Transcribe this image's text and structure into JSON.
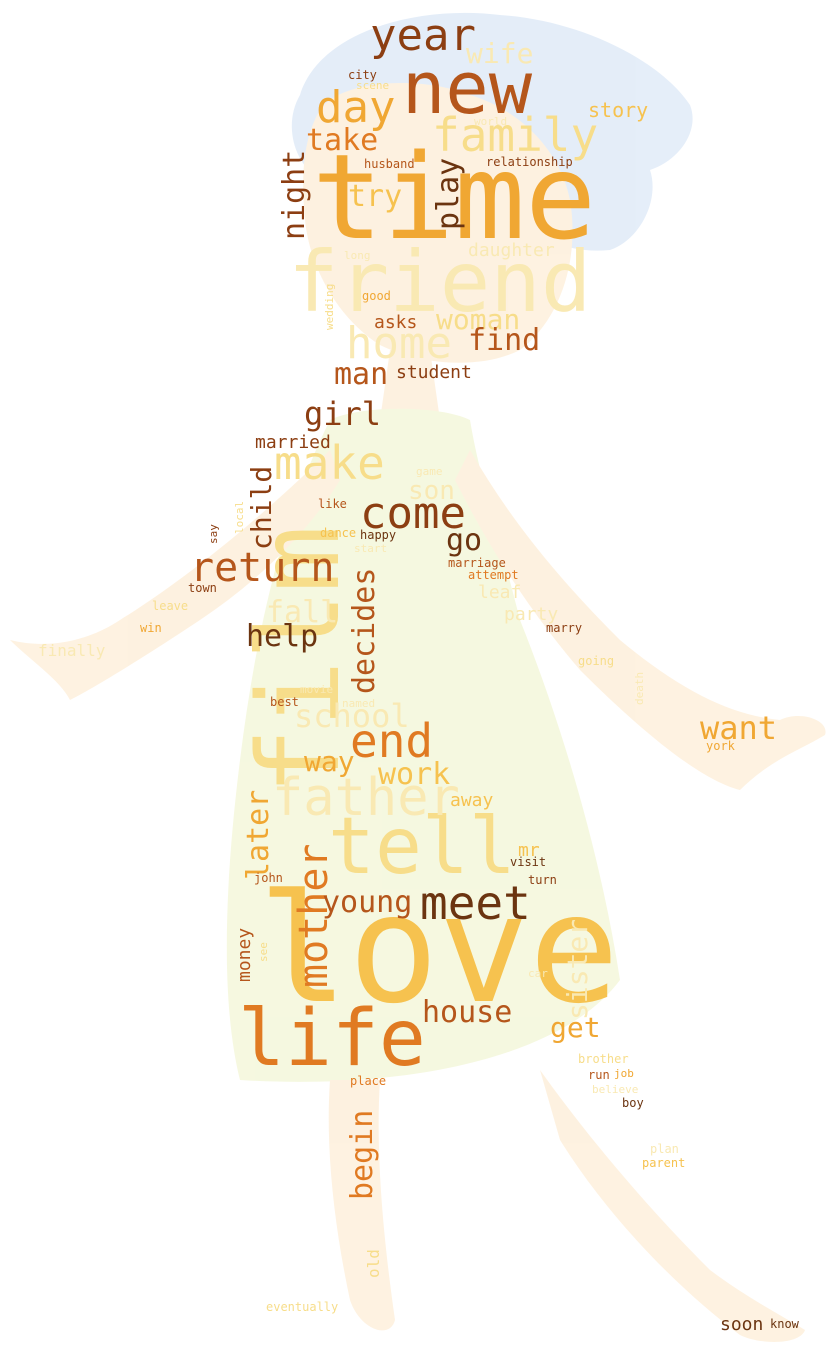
{
  "wordcloud": {
    "palette": {
      "dark_brown": "#6b3410",
      "brown": "#8c3e12",
      "rust": "#b5561b",
      "orange": "#e07a22",
      "amber": "#f0a733",
      "gold": "#f6c24f",
      "pale_gold": "#f7dd8a",
      "cream": "#f9e9b3"
    },
    "words": [
      {
        "text": "time",
        "color": "#f0a733"
      },
      {
        "text": "love",
        "color": "#f6c24f"
      },
      {
        "text": "film",
        "color": "#f7dd8a"
      },
      {
        "text": "friend",
        "color": "#f9e9b3"
      },
      {
        "text": "new",
        "color": "#b5561b"
      },
      {
        "text": "tell",
        "color": "#f7dd8a"
      },
      {
        "text": "life",
        "color": "#e07a22"
      },
      {
        "text": "year",
        "color": "#8c3e12"
      },
      {
        "text": "family",
        "color": "#f7dd8a"
      },
      {
        "text": "day",
        "color": "#f0a733"
      },
      {
        "text": "home",
        "color": "#f9e9b3"
      },
      {
        "text": "make",
        "color": "#f7dd8a"
      },
      {
        "text": "come",
        "color": "#8c3e12"
      },
      {
        "text": "return",
        "color": "#b5561b"
      },
      {
        "text": "meet",
        "color": "#6b3410"
      },
      {
        "text": "father",
        "color": "#f9e9b3"
      },
      {
        "text": "end",
        "color": "#e07a22"
      },
      {
        "text": "mother",
        "color": "#e07a22"
      },
      {
        "text": "wife",
        "color": "#f9e9b3"
      },
      {
        "text": "take",
        "color": "#e07a22"
      },
      {
        "text": "try",
        "color": "#f6c24f"
      },
      {
        "text": "night",
        "color": "#8c3e12"
      },
      {
        "text": "play",
        "color": "#6b3410"
      },
      {
        "text": "woman",
        "color": "#f7dd8a"
      },
      {
        "text": "find",
        "color": "#b5561b"
      },
      {
        "text": "man",
        "color": "#b5561b"
      },
      {
        "text": "girl",
        "color": "#8c3e12"
      },
      {
        "text": "son",
        "color": "#f9e9b3"
      },
      {
        "text": "child",
        "color": "#8c3e12"
      },
      {
        "text": "go",
        "color": "#6b3410"
      },
      {
        "text": "decides",
        "color": "#b5561b"
      },
      {
        "text": "fall",
        "color": "#f9e9b3"
      },
      {
        "text": "help",
        "color": "#6b3410"
      },
      {
        "text": "school",
        "color": "#f9e9b3"
      },
      {
        "text": "want",
        "color": "#f0a733"
      },
      {
        "text": "way",
        "color": "#f0a733"
      },
      {
        "text": "work",
        "color": "#f6c24f"
      },
      {
        "text": "young",
        "color": "#b5561b"
      },
      {
        "text": "later",
        "color": "#f0a733"
      },
      {
        "text": "house",
        "color": "#b5561b"
      },
      {
        "text": "get",
        "color": "#f0a733"
      },
      {
        "text": "begin",
        "color": "#e07a22"
      },
      {
        "text": "sister",
        "color": "#f9e9b3"
      },
      {
        "text": "story",
        "color": "#f6c24f"
      },
      {
        "text": "married",
        "color": "#8c3e12"
      },
      {
        "text": "asks",
        "color": "#b5561b"
      },
      {
        "text": "student",
        "color": "#8c3e12"
      },
      {
        "text": "daughter",
        "color": "#f9e9b3"
      },
      {
        "text": "away",
        "color": "#f6c24f"
      },
      {
        "text": "mr",
        "color": "#f6c24f"
      },
      {
        "text": "money",
        "color": "#b5561b"
      },
      {
        "text": "leaf",
        "color": "#f9e9b3"
      },
      {
        "text": "party",
        "color": "#f9e9b3"
      },
      {
        "text": "soon",
        "color": "#6b3410"
      },
      {
        "text": "city",
        "color": "#8c3e12"
      },
      {
        "text": "scene",
        "color": "#f7dd8a"
      },
      {
        "text": "husband",
        "color": "#b5561b"
      },
      {
        "text": "relationship",
        "color": "#8c3e12"
      },
      {
        "text": "world",
        "color": "#f9e9b3"
      },
      {
        "text": "long",
        "color": "#f9e9b3"
      },
      {
        "text": "good",
        "color": "#f0a733"
      },
      {
        "text": "wedding",
        "color": "#f7dd8a"
      },
      {
        "text": "game",
        "color": "#f9e9b3"
      },
      {
        "text": "like",
        "color": "#b5561b"
      },
      {
        "text": "local",
        "color": "#f7dd8a"
      },
      {
        "text": "say",
        "color": "#8c3e12"
      },
      {
        "text": "dance",
        "color": "#f6c24f"
      },
      {
        "text": "happy",
        "color": "#6b3410"
      },
      {
        "text": "start",
        "color": "#f9e9b3"
      },
      {
        "text": "marriage",
        "color": "#b5561b"
      },
      {
        "text": "attempt",
        "color": "#e07a22"
      },
      {
        "text": "town",
        "color": "#8c3e12"
      },
      {
        "text": "leave",
        "color": "#f7dd8a"
      },
      {
        "text": "win",
        "color": "#f0a733"
      },
      {
        "text": "marry",
        "color": "#8c3e12"
      },
      {
        "text": "finally",
        "color": "#f9e9b3"
      },
      {
        "text": "going",
        "color": "#f7dd8a"
      },
      {
        "text": "movie",
        "color": "#f9e9b3"
      },
      {
        "text": "best",
        "color": "#b5561b"
      },
      {
        "text": "named",
        "color": "#f9e9b3"
      },
      {
        "text": "york",
        "color": "#f0a733"
      },
      {
        "text": "death",
        "color": "#f9e9b3"
      },
      {
        "text": "visit",
        "color": "#6b3410"
      },
      {
        "text": "turn",
        "color": "#8c3e12"
      },
      {
        "text": "john",
        "color": "#b5561b"
      },
      {
        "text": "see",
        "color": "#f7dd8a"
      },
      {
        "text": "car",
        "color": "#f9e9b3"
      },
      {
        "text": "brother",
        "color": "#f7dd8a"
      },
      {
        "text": "run",
        "color": "#b5561b"
      },
      {
        "text": "job",
        "color": "#f0a733"
      },
      {
        "text": "place",
        "color": "#e07a22"
      },
      {
        "text": "believe",
        "color": "#f9e9b3"
      },
      {
        "text": "boy",
        "color": "#6b3410"
      },
      {
        "text": "plan",
        "color": "#f9e9b3"
      },
      {
        "text": "parent",
        "color": "#f6c24f"
      },
      {
        "text": "old",
        "color": "#f7dd8a"
      },
      {
        "text": "eventually",
        "color": "#f7dd8a"
      },
      {
        "text": "know",
        "color": "#6b3410"
      },
      {
        "text": "see",
        "color": "#f9e9b3"
      }
    ]
  }
}
